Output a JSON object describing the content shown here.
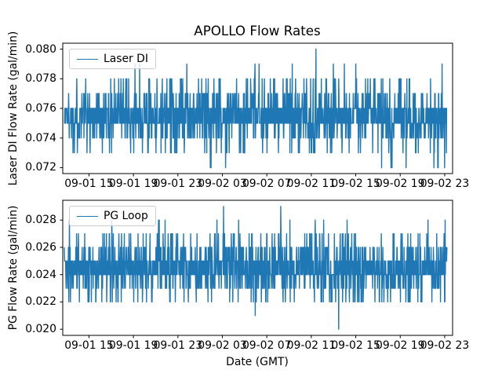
{
  "figure": {
    "background_color": "#ffffff",
    "text_color": "#000000",
    "accent_line_color": "#1f77b4"
  },
  "chart_data": [
    {
      "type": "line",
      "title": "APOLLO Flow Rates",
      "ylabel": "Laser DI Flow Rate (gal/min)",
      "xlabel": "",
      "grid": false,
      "legend": {
        "position": "upper left"
      },
      "ylim": [
        0.0716,
        0.0804
      ],
      "xlim_hours": [
        12.64,
        47.71
      ],
      "yticks": {
        "values": [
          0.072,
          0.074,
          0.076,
          0.078,
          0.08
        ],
        "labels": [
          "0.072",
          "0.074",
          "0.076",
          "0.078",
          "0.080"
        ]
      },
      "xticks": {
        "hours": [
          15,
          19,
          23,
          27,
          31,
          35,
          39,
          43,
          47
        ],
        "labels": [
          "09-01 15",
          "09-01 19",
          "09-01 23",
          "09-02 03",
          "09-02 07",
          "09-02 11",
          "09-02 15",
          "09-02 19",
          "09-02 23"
        ]
      },
      "series": [
        {
          "name": "Laser DI",
          "color": "#1f77b4",
          "n_points": 1500,
          "x_range_hours": [
            12.78,
            47.2
          ],
          "levels": [
            0.072,
            0.073,
            0.074,
            0.075,
            0.076,
            0.077,
            0.078,
            0.079,
            0.08
          ],
          "level_weights": [
            0.006,
            0.04,
            0.12,
            0.33,
            0.33,
            0.11,
            0.056,
            0.0045,
            0
          ],
          "forced_points": [
            {
              "frac": 0.596,
              "value": 0.079
            },
            {
              "frac": 0.658,
              "value": 0.08
            },
            {
              "frac": 0.703,
              "value": 0.079
            }
          ],
          "seed": 1337
        }
      ]
    },
    {
      "type": "line",
      "title": "",
      "ylabel": "PG Flow Rate (gal/min)",
      "xlabel": "Date (GMT)",
      "grid": false,
      "legend": {
        "position": "upper left"
      },
      "ylim": [
        0.01955,
        0.02945
      ],
      "xlim_hours": [
        12.64,
        47.71
      ],
      "yticks": {
        "values": [
          0.02,
          0.022,
          0.024,
          0.026,
          0.028
        ],
        "labels": [
          "0.020",
          "0.022",
          "0.024",
          "0.026",
          "0.028"
        ]
      },
      "xticks": {
        "hours": [
          15,
          19,
          23,
          27,
          31,
          35,
          39,
          43,
          47
        ],
        "labels": [
          "09-01 15",
          "09-01 19",
          "09-01 23",
          "09-02 03",
          "09-02 07",
          "09-02 11",
          "09-02 15",
          "09-02 19",
          "09-02 23"
        ]
      },
      "series": [
        {
          "name": "PG Loop",
          "color": "#1f77b4",
          "n_points": 1500,
          "x_range_hours": [
            12.78,
            47.2
          ],
          "levels": [
            0.02,
            0.021,
            0.022,
            0.023,
            0.024,
            0.025,
            0.026,
            0.027,
            0.028,
            0.029
          ],
          "level_weights": [
            0,
            0.003,
            0.048,
            0.12,
            0.33,
            0.3,
            0.125,
            0.062,
            0.011,
            0
          ],
          "forced_points": [
            {
              "frac": 0.416,
              "value": 0.029
            },
            {
              "frac": 0.566,
              "value": 0.029
            },
            {
              "frac": 0.717,
              "value": 0.02
            }
          ],
          "seed": 2024
        }
      ]
    }
  ]
}
